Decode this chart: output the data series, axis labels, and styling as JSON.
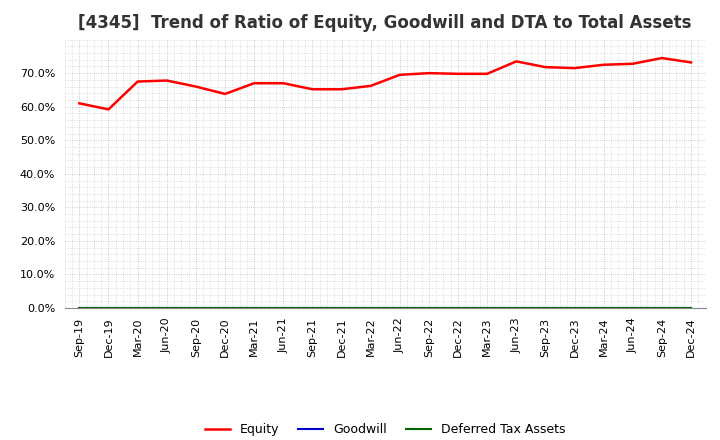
{
  "title": "[4345]  Trend of Ratio of Equity, Goodwill and DTA to Total Assets",
  "x_labels": [
    "Sep-19",
    "Dec-19",
    "Mar-20",
    "Jun-20",
    "Sep-20",
    "Dec-20",
    "Mar-21",
    "Jun-21",
    "Sep-21",
    "Dec-21",
    "Mar-22",
    "Jun-22",
    "Sep-22",
    "Dec-22",
    "Mar-23",
    "Jun-23",
    "Sep-23",
    "Dec-23",
    "Mar-24",
    "Jun-24",
    "Sep-24",
    "Dec-24"
  ],
  "equity": [
    0.61,
    0.592,
    0.675,
    0.678,
    0.66,
    0.638,
    0.67,
    0.67,
    0.652,
    0.652,
    0.662,
    0.695,
    0.7,
    0.698,
    0.698,
    0.735,
    0.718,
    0.715,
    0.725,
    0.728,
    0.745,
    0.732
  ],
  "goodwill": [
    0.0,
    0.0,
    0.0,
    0.0,
    0.0,
    0.0,
    0.0,
    0.0,
    0.0,
    0.0,
    0.0,
    0.0,
    0.0,
    0.0,
    0.0,
    0.0,
    0.0,
    0.0,
    0.0,
    0.0,
    0.0,
    0.0
  ],
  "dta": [
    0.0,
    0.0,
    0.0,
    0.0,
    0.0,
    0.0,
    0.0,
    0.0,
    0.0,
    0.0,
    0.0,
    0.0,
    0.0,
    0.0,
    0.0,
    0.0,
    0.0,
    0.0,
    0.0,
    0.0,
    0.0,
    0.0
  ],
  "equity_color": "#ff0000",
  "goodwill_color": "#0000cd",
  "dta_color": "#006400",
  "ylim": [
    0.0,
    0.8
  ],
  "yticks": [
    0.0,
    0.1,
    0.2,
    0.3,
    0.4,
    0.5,
    0.6,
    0.7
  ],
  "background_color": "#ffffff",
  "plot_bg_color": "#ffffff",
  "grid_color": "#bbbbbb",
  "title_fontsize": 12,
  "tick_fontsize": 8,
  "legend_labels": [
    "Equity",
    "Goodwill",
    "Deferred Tax Assets"
  ]
}
